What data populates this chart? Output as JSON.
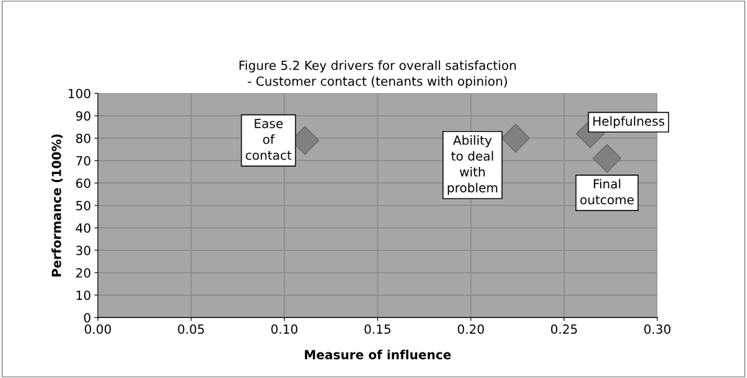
{
  "chart_data": {
    "type": "scatter",
    "title": "Figure 5.2 Key drivers for overall satisfaction\n- Customer contact (tenants with opinion)",
    "xlabel": "Measure of influence",
    "ylabel": "Performance (100%)",
    "x": [
      0.111,
      0.224,
      0.264,
      0.273
    ],
    "series": [
      {
        "color": "#808080",
        "values": [
          79,
          80,
          82,
          71
        ]
      }
    ],
    "annotations": [
      {
        "text": "Ease\nof\ncontact",
        "x": 0.111,
        "y": 79
      },
      {
        "text": "Ability\nto deal\nwith\nproblem",
        "x": 0.224,
        "y": 80
      },
      {
        "text": "Helpfulness",
        "x": 0.264,
        "y": 82
      },
      {
        "text": "Final\noutcome",
        "x": 0.273,
        "y": 71
      }
    ],
    "marker": "diamond",
    "grid": true,
    "xlim": [
      0,
      0.3
    ],
    "ylim": [
      0,
      100
    ],
    "xticks": [
      {
        "value": 0,
        "label": "0.00"
      },
      {
        "value": 0.05,
        "label": "0.05"
      },
      {
        "value": 0.1,
        "label": "0.10"
      },
      {
        "value": 0.15,
        "label": "0.15"
      },
      {
        "value": 0.2,
        "label": "0.20"
      },
      {
        "value": 0.25,
        "label": "0.25"
      },
      {
        "value": 0.3,
        "label": "0.30"
      }
    ],
    "yticks": [
      0,
      10,
      20,
      30,
      40,
      50,
      60,
      70,
      80,
      90,
      100
    ]
  }
}
